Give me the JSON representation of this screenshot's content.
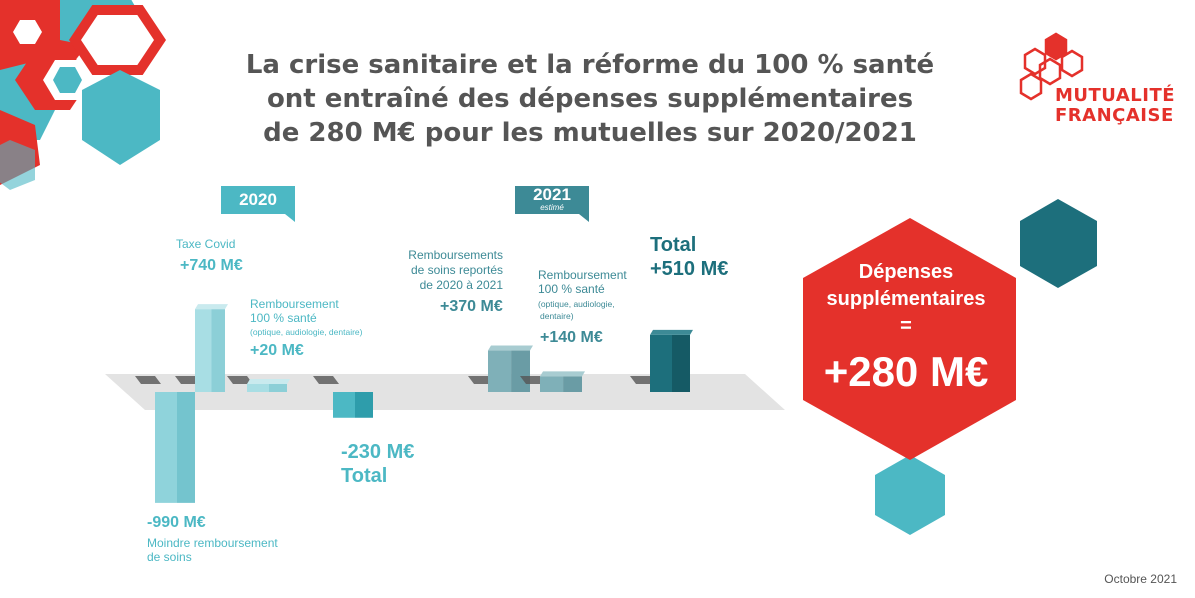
{
  "title": {
    "line1": "La crise sanitaire et la réforme du 100 % santé",
    "line2": "ont entraîné des dépenses supplémentaires",
    "line3": "de 280 M€ pour les mutuelles sur 2020/2021"
  },
  "logo": {
    "line1": "MUTUALITÉ",
    "line2": "FRANÇAISE"
  },
  "colors": {
    "red": "#e4312b",
    "teal_light": "#4cb8c4",
    "teal_dark": "#1d6f7c",
    "grey_text": "#555555"
  },
  "chart_data": {
    "type": "bar",
    "unit": "M€",
    "groups": [
      {
        "year": "2020",
        "year_note": "",
        "items": [
          {
            "label": "Taxe Covid",
            "value_text": "+740 M€",
            "value": 740
          },
          {
            "label": "Remboursement 100 % santé",
            "note": "(optique, audiologie, dentaire)",
            "value_text": "+20 M€",
            "value": 20
          },
          {
            "label": "Moindre remboursement de soins",
            "value_text": "-990 M€",
            "value": -990
          },
          {
            "label": "Total",
            "value_text": "-230 M€",
            "value": -230
          }
        ]
      },
      {
        "year": "2021",
        "year_note": "estimé",
        "items": [
          {
            "label": "Remboursements de soins reportés de 2020 à 2021",
            "value_text": "+370 M€",
            "value": 370
          },
          {
            "label": "Remboursement 100 % santé",
            "note": "(optique, audiologie, dentaire)",
            "value_text": "+140 M€",
            "value": 140
          },
          {
            "label": "Total",
            "value_text": "+510 M€",
            "value": 510
          }
        ]
      }
    ]
  },
  "result": {
    "label_line1": "Dépenses",
    "label_line2": "supplémentaires",
    "label_line3": "=",
    "value_text": "+280 M€"
  },
  "labels": {
    "taxe": "Taxe Covid",
    "remb_line1": "Remboursement",
    "remb_line2": "100 % santé",
    "remb_note": "(optique, audiologie, dentaire)",
    "moindre_line1": "Moindre remboursement",
    "moindre_line2": "de soins",
    "reportes_line1": "Remboursements",
    "reportes_line2": "de soins reportés",
    "reportes_line3": "de 2020 à 2021",
    "remb21_line1": "Remboursement",
    "remb21_line2": "100 % santé",
    "remb21_note1": "(optique, audiologie,",
    "remb21_note2": "dentaire)",
    "total": "Total"
  },
  "footer": {
    "date": "Octobre 2021"
  }
}
